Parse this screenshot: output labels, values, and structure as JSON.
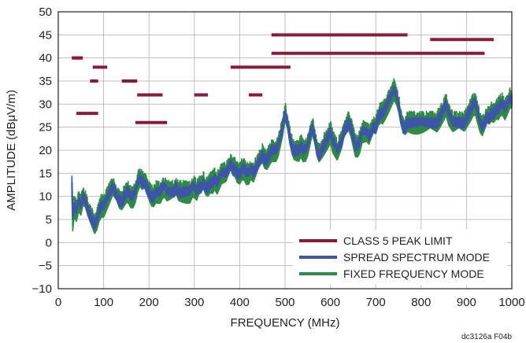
{
  "chart_data": {
    "type": "line",
    "xlabel": "FREQUENCY (MHz)",
    "ylabel": "AMPLITUDE (dBμV/m)",
    "xlim": [
      0,
      1000
    ],
    "ylim": [
      -10,
      50
    ],
    "xticks": [
      0,
      100,
      200,
      300,
      400,
      500,
      600,
      700,
      800,
      900,
      1000
    ],
    "yticks": [
      -10,
      -5,
      0,
      5,
      10,
      15,
      20,
      25,
      30,
      35,
      40,
      45,
      50
    ],
    "ytick_labels": [
      "−10",
      "−5",
      "0",
      "5",
      "10",
      "15",
      "20",
      "25",
      "30",
      "35",
      "40",
      "45",
      "50"
    ],
    "grid": true,
    "legend": "bottom-right",
    "colors": {
      "limit": "#8b1a3a",
      "spread": "#3c55a8",
      "fixed": "#2f8a45",
      "grid": "#bdbfc1",
      "frame": "#231f20"
    },
    "limit_segments": [
      {
        "x": [
          30,
          54
        ],
        "y": 40
      },
      {
        "x": [
          30,
          54
        ],
        "y": 40
      },
      {
        "x": [
          40,
          88
        ],
        "y": 28
      },
      {
        "x": [
          70,
          88
        ],
        "y": 35
      },
      {
        "x": [
          76,
          108
        ],
        "y": 38
      },
      {
        "x": [
          140,
          174
        ],
        "y": 35
      },
      {
        "x": [
          170,
          240
        ],
        "y": 26
      },
      {
        "x": [
          174,
          230
        ],
        "y": 32
      },
      {
        "x": [
          300,
          330
        ],
        "y": 32
      },
      {
        "x": [
          380,
          512
        ],
        "y": 38
      },
      {
        "x": [
          420,
          450
        ],
        "y": 32
      },
      {
        "x": [
          470,
          940
        ],
        "y": 41
      },
      {
        "x": [
          470,
          770
        ],
        "y": 45
      },
      {
        "x": [
          820,
          960
        ],
        "y": 44
      }
    ],
    "series": [
      {
        "name": "CLASS 5 PEAK LIMIT",
        "kind": "limit"
      },
      {
        "name": "SPREAD SPECTRUM MODE",
        "kind": "trace",
        "band": 1.3,
        "x": [
          30,
          32,
          35,
          40,
          45,
          50,
          55,
          60,
          65,
          70,
          75,
          80,
          85,
          90,
          95,
          100,
          105,
          110,
          115,
          120,
          125,
          130,
          135,
          140,
          145,
          150,
          155,
          160,
          165,
          170,
          175,
          180,
          185,
          190,
          195,
          200,
          205,
          210,
          215,
          220,
          225,
          230,
          235,
          240,
          245,
          250,
          255,
          260,
          265,
          270,
          275,
          280,
          285,
          290,
          295,
          300,
          305,
          310,
          315,
          320,
          325,
          330,
          335,
          340,
          345,
          350,
          355,
          360,
          365,
          370,
          375,
          380,
          385,
          390,
          395,
          400,
          405,
          410,
          415,
          420,
          425,
          430,
          435,
          440,
          445,
          450,
          455,
          460,
          465,
          470,
          475,
          480,
          485,
          490,
          495,
          500,
          505,
          510,
          515,
          520,
          525,
          530,
          535,
          540,
          545,
          550,
          555,
          560,
          565,
          570,
          575,
          580,
          585,
          590,
          595,
          600,
          605,
          610,
          615,
          620,
          625,
          630,
          635,
          640,
          645,
          650,
          655,
          660,
          665,
          670,
          675,
          680,
          685,
          690,
          695,
          700,
          705,
          710,
          715,
          720,
          725,
          730,
          735,
          740,
          745,
          750,
          755,
          760,
          765,
          770,
          775,
          780,
          785,
          790,
          795,
          800,
          805,
          810,
          815,
          820,
          825,
          830,
          835,
          840,
          845,
          850,
          855,
          860,
          865,
          870,
          875,
          880,
          885,
          890,
          895,
          900,
          905,
          910,
          915,
          920,
          925,
          930,
          935,
          940,
          945,
          950,
          955,
          960,
          965,
          970,
          975,
          980,
          985,
          990,
          995,
          1000
        ],
        "y": [
          13,
          6,
          8,
          7,
          9,
          8,
          10,
          9,
          7,
          6,
          5,
          4,
          5,
          7,
          8,
          8,
          9,
          10,
          11,
          12,
          11,
          10,
          9,
          9,
          10,
          11,
          11,
          10,
          10,
          11,
          13,
          14,
          13,
          13,
          12,
          11,
          10,
          10,
          11,
          11,
          11,
          12,
          12,
          11,
          11,
          11,
          11,
          12,
          11,
          11,
          11,
          11,
          11,
          11,
          12,
          12,
          11,
          12,
          12,
          13,
          12,
          12,
          13,
          13,
          14,
          13,
          14,
          15,
          15,
          15,
          16,
          17,
          16,
          16,
          15,
          15,
          16,
          16,
          15,
          15,
          16,
          15,
          16,
          17,
          18,
          19,
          18,
          18,
          19,
          20,
          20,
          20,
          21,
          23,
          25,
          28,
          26,
          23,
          21,
          20,
          20,
          20,
          21,
          20,
          20,
          21,
          23,
          25,
          23,
          20,
          19,
          20,
          21,
          22,
          23,
          24,
          22,
          21,
          20,
          21,
          22,
          24,
          25,
          26,
          25,
          23,
          21,
          21,
          22,
          24,
          24,
          24,
          23,
          24,
          25,
          25,
          27,
          28,
          28,
          29,
          30,
          31,
          32,
          33,
          32,
          30,
          27,
          25,
          25,
          26,
          26,
          26,
          26,
          26,
          26,
          26,
          26,
          26,
          26,
          26,
          26,
          26,
          26,
          27,
          28,
          29,
          30,
          28,
          27,
          26,
          26,
          26,
          26,
          26,
          26,
          27,
          28,
          29,
          30,
          30,
          28,
          26,
          25,
          26,
          27,
          27,
          28,
          28,
          29,
          29,
          30,
          30,
          29,
          30,
          31,
          31
        ]
      },
      {
        "name": "FIXED FREQUENCY MODE",
        "kind": "trace",
        "band": 2.6,
        "x": [
          30,
          32,
          35,
          40,
          45,
          50,
          55,
          60,
          65,
          70,
          75,
          80,
          85,
          90,
          95,
          100,
          105,
          110,
          115,
          120,
          125,
          130,
          135,
          140,
          145,
          150,
          155,
          160,
          165,
          170,
          175,
          180,
          185,
          190,
          195,
          200,
          205,
          210,
          215,
          220,
          225,
          230,
          235,
          240,
          245,
          250,
          255,
          260,
          265,
          270,
          275,
          280,
          285,
          290,
          295,
          300,
          305,
          310,
          315,
          320,
          325,
          330,
          335,
          340,
          345,
          350,
          355,
          360,
          365,
          370,
          375,
          380,
          385,
          390,
          395,
          400,
          405,
          410,
          415,
          420,
          425,
          430,
          435,
          440,
          445,
          450,
          455,
          460,
          465,
          470,
          475,
          480,
          485,
          490,
          495,
          500,
          505,
          510,
          515,
          520,
          525,
          530,
          535,
          540,
          545,
          550,
          555,
          560,
          565,
          570,
          575,
          580,
          585,
          590,
          595,
          600,
          605,
          610,
          615,
          620,
          625,
          630,
          635,
          640,
          645,
          650,
          655,
          660,
          665,
          670,
          675,
          680,
          685,
          690,
          695,
          700,
          705,
          710,
          715,
          720,
          725,
          730,
          735,
          740,
          745,
          750,
          755,
          760,
          765,
          770,
          775,
          780,
          785,
          790,
          795,
          800,
          805,
          810,
          815,
          820,
          825,
          830,
          835,
          840,
          845,
          850,
          855,
          860,
          865,
          870,
          875,
          880,
          885,
          890,
          895,
          900,
          905,
          910,
          915,
          920,
          925,
          930,
          935,
          940,
          945,
          950,
          955,
          960,
          965,
          970,
          975,
          980,
          985,
          990,
          995,
          1000
        ],
        "y": [
          12,
          5,
          8,
          7,
          9,
          8,
          10,
          9,
          7,
          6,
          5,
          4,
          5,
          7,
          8,
          8,
          9,
          10,
          11,
          12,
          11,
          10,
          9,
          9,
          10,
          11,
          11,
          10,
          10,
          11,
          13,
          14,
          13,
          13,
          12,
          11,
          10,
          10,
          11,
          11,
          11,
          12,
          12,
          11,
          11,
          11,
          11,
          12,
          11,
          11,
          11,
          11,
          11,
          11,
          12,
          12,
          11,
          12,
          12,
          13,
          12,
          12,
          13,
          13,
          14,
          13,
          14,
          15,
          15,
          15,
          16,
          17,
          16,
          16,
          15,
          15,
          16,
          16,
          15,
          15,
          16,
          15,
          16,
          17,
          18,
          19,
          18,
          18,
          19,
          20,
          20,
          20,
          21,
          23,
          25,
          28,
          26,
          23,
          21,
          20,
          20,
          20,
          21,
          20,
          20,
          21,
          23,
          25,
          23,
          20,
          19,
          20,
          21,
          22,
          23,
          24,
          22,
          21,
          20,
          21,
          22,
          24,
          25,
          26,
          25,
          23,
          21,
          21,
          22,
          24,
          24,
          24,
          23,
          24,
          25,
          25,
          27,
          28,
          28,
          29,
          30,
          31,
          32,
          33,
          32,
          30,
          27,
          25,
          25,
          26,
          26,
          26,
          26,
          26,
          26,
          26,
          26,
          26,
          26,
          26,
          26,
          26,
          26,
          27,
          28,
          29,
          30,
          28,
          27,
          26,
          26,
          26,
          26,
          26,
          26,
          27,
          28,
          29,
          30,
          30,
          28,
          26,
          25,
          26,
          27,
          27,
          28,
          28,
          29,
          29,
          30,
          30,
          29,
          30,
          31,
          31
        ]
      }
    ],
    "credit": "dc3126a F04b"
  }
}
